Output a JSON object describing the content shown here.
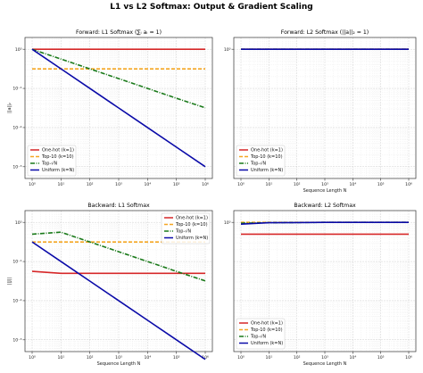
{
  "figure": {
    "suptitle": "L1 vs L2 Softmax: Output & Gradient Scaling"
  },
  "chart_data": [
    {
      "type": "line",
      "title": "Forward: L1 Softmax (∑ᵢ aᵢ = 1)",
      "xlabel": "",
      "ylabel": "||a||₂",
      "xscale": "log",
      "yscale": "log",
      "xlim": [
        1,
        1000000
      ],
      "ylim": [
        0.0005,
        2
      ],
      "xticks": [
        "10⁰",
        "10¹",
        "10²",
        "10³",
        "10⁴",
        "10⁵",
        "10⁶"
      ],
      "yticks": [
        "10⁰",
        "10⁻¹",
        "10⁻²",
        "10⁻³"
      ],
      "grid": true,
      "legend_position": "lower-left",
      "x": [
        1,
        10,
        100,
        1000,
        10000,
        100000,
        1000000
      ],
      "series": [
        {
          "name": "One-hot (k=1)",
          "color": "#d62728",
          "dash": "solid",
          "values": [
            1,
            1,
            1,
            1,
            1,
            1,
            1
          ]
        },
        {
          "name": "Top-10 (k=10)",
          "color": "#f5a623",
          "dash": "dashed",
          "values": [
            0.316,
            0.316,
            0.316,
            0.316,
            0.316,
            0.316,
            0.316
          ]
        },
        {
          "name": "Top-√N",
          "color": "#1a7a1a",
          "dash": "dashdot",
          "values": [
            1,
            0.562,
            0.316,
            0.178,
            0.1,
            0.056,
            0.032
          ]
        },
        {
          "name": "Uniform (k=N)",
          "color": "#0a0aa8",
          "dash": "solid",
          "values": [
            1,
            0.316,
            0.1,
            0.0316,
            0.01,
            0.00316,
            0.001
          ]
        }
      ]
    },
    {
      "type": "line",
      "title": "Forward: L2 Softmax (||a||₂ = 1)",
      "xlabel": "Sequence Length N",
      "ylabel": "",
      "xscale": "log",
      "yscale": "log",
      "xlim": [
        1,
        1000000
      ],
      "ylim": [
        0.0005,
        2
      ],
      "xticks": [
        "10⁰",
        "10¹",
        "10²",
        "10³",
        "10⁴",
        "10⁵",
        "10⁶"
      ],
      "yticks": [
        "10⁰"
      ],
      "grid": true,
      "legend_position": "lower-left",
      "x": [
        1,
        10,
        100,
        1000,
        10000,
        100000,
        1000000
      ],
      "series": [
        {
          "name": "One-hot (k=1)",
          "color": "#d62728",
          "dash": "solid",
          "values": [
            1,
            1,
            1,
            1,
            1,
            1,
            1
          ]
        },
        {
          "name": "Top-10 (k=10)",
          "color": "#f5a623",
          "dash": "dashed",
          "values": [
            1,
            1,
            1,
            1,
            1,
            1,
            1
          ]
        },
        {
          "name": "Top-√N",
          "color": "#1a7a1a",
          "dash": "dashdot",
          "values": [
            1,
            1,
            1,
            1,
            1,
            1,
            1
          ]
        },
        {
          "name": "Uniform (k=N)",
          "color": "#0a0aa8",
          "dash": "solid",
          "values": [
            1,
            1,
            1,
            1,
            1,
            1,
            1
          ]
        }
      ]
    },
    {
      "type": "line",
      "title": "Backward: L1 Softmax",
      "xlabel": "Sequence Length N",
      "ylabel": "||J||",
      "xscale": "log",
      "yscale": "log",
      "xlim": [
        1,
        1000000
      ],
      "ylim": [
        0.0005,
        2
      ],
      "xticks": [
        "10⁰",
        "10¹",
        "10²",
        "10³",
        "10⁴",
        "10⁵",
        "10⁶"
      ],
      "yticks": [
        "10⁰",
        "10⁻¹",
        "10⁻²",
        "10⁻³"
      ],
      "grid": true,
      "legend_position": "top-right",
      "x": [
        1,
        10,
        100,
        1000,
        10000,
        100000,
        1000000
      ],
      "series": [
        {
          "name": "One-hot (k=1)",
          "color": "#d62728",
          "dash": "solid",
          "values": [
            0.0562,
            0.05,
            0.05,
            0.05,
            0.05,
            0.05,
            0.05
          ]
        },
        {
          "name": "Top-10 (k=10)",
          "color": "#f5a623",
          "dash": "dashed",
          "values": [
            0.316,
            0.316,
            0.316,
            0.316,
            0.316,
            0.316,
            0.316
          ]
        },
        {
          "name": "Top-√N",
          "color": "#1a7a1a",
          "dash": "dashdot",
          "values": [
            0.5,
            0.562,
            0.316,
            0.178,
            0.1,
            0.056,
            0.032
          ]
        },
        {
          "name": "Uniform (k=N)",
          "color": "#0a0aa8",
          "dash": "solid",
          "values": [
            0.316,
            0.1,
            0.0316,
            0.01,
            0.00316,
            0.001,
            0.000316
          ]
        }
      ]
    },
    {
      "type": "line",
      "title": "Backward: L2 Softmax",
      "xlabel": "Sequence Length N",
      "ylabel": "",
      "xscale": "log",
      "yscale": "log",
      "xlim": [
        1,
        1000000
      ],
      "ylim": [
        0.0005,
        2
      ],
      "xticks": [
        "10⁰",
        "10¹",
        "10²",
        "10³",
        "10⁴",
        "10⁵",
        "10⁶"
      ],
      "yticks": [
        "10⁰"
      ],
      "grid": true,
      "legend_position": "lower-left",
      "x": [
        1,
        10,
        100,
        1000,
        10000,
        100000,
        1000000
      ],
      "series": [
        {
          "name": "One-hot (k=1)",
          "color": "#d62728",
          "dash": "solid",
          "values": [
            0.5,
            0.5,
            0.5,
            0.5,
            0.5,
            0.5,
            0.5
          ]
        },
        {
          "name": "Top-10 (k=10)",
          "color": "#f5a623",
          "dash": "dashed",
          "values": [
            1,
            1,
            1,
            1,
            1,
            1,
            1
          ]
        },
        {
          "name": "Top-√N",
          "color": "#1a7a1a",
          "dash": "dashdot",
          "values": [
            0.95,
            0.98,
            0.99,
            1,
            1,
            1,
            1
          ]
        },
        {
          "name": "Uniform (k=N)",
          "color": "#0a0aa8",
          "dash": "solid",
          "values": [
            0.9,
            0.98,
            0.99,
            1,
            1,
            1,
            1
          ]
        }
      ]
    }
  ]
}
